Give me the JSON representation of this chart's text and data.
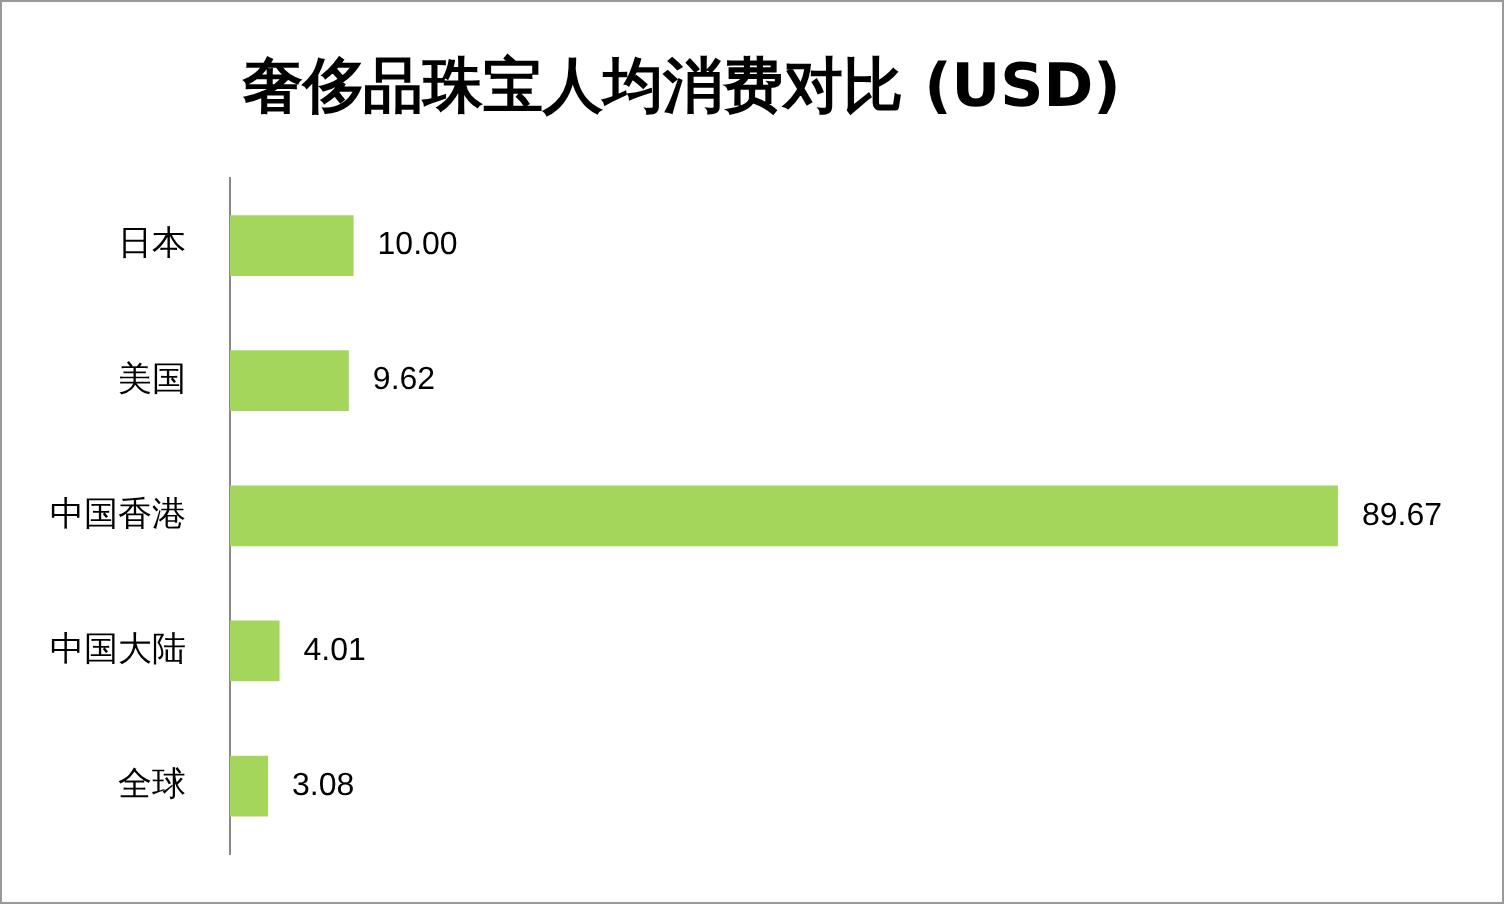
{
  "chart_data": {
    "type": "bar",
    "orientation": "horizontal",
    "title": "奢侈品珠宝人均消费对比 (USD)",
    "categories": [
      "日本",
      "美国",
      "中国香港",
      "中国大陆",
      "全球"
    ],
    "values": [
      10.0,
      9.62,
      89.67,
      4.01,
      3.08
    ],
    "value_labels": [
      "10.00",
      "9.62",
      "89.67",
      "4.01",
      "3.08"
    ],
    "color": "#a5d65c",
    "legend": false,
    "tick_labels": "y"
  }
}
